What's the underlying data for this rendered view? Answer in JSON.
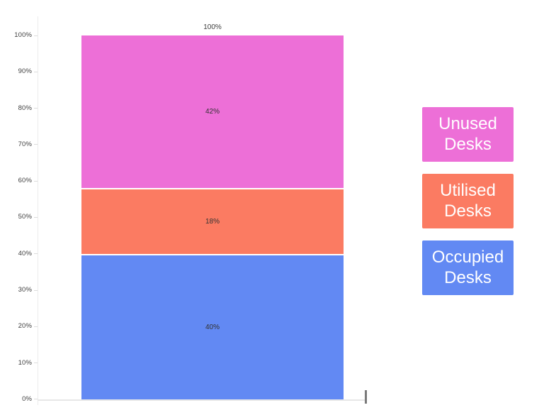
{
  "chart_data": {
    "type": "bar",
    "variant": "100%-stacked-column",
    "title": "",
    "categories": [
      ""
    ],
    "series": [
      {
        "name": "Unused Desks",
        "values": [
          42
        ],
        "color": "#ed6fd7"
      },
      {
        "name": "Utilised Desks",
        "values": [
          18
        ],
        "color": "#fb7b62"
      },
      {
        "name": "Occupied Desks",
        "values": [
          40
        ],
        "color": "#6289f3"
      }
    ],
    "stack_order_top_to_bottom": [
      "Unused Desks",
      "Utilised Desks",
      "Occupied Desks"
    ],
    "data_labels": [
      "42%",
      "18%",
      "40%"
    ],
    "total_label": "100%",
    "xlabel": "",
    "ylabel": "",
    "ylim": [
      0,
      100
    ],
    "y_ticks": [
      "100%",
      "90%",
      "80%",
      "70%",
      "60%",
      "50%",
      "40%",
      "30%",
      "20%",
      "10%",
      "0%"
    ],
    "grid": false,
    "legend_position": "right"
  },
  "colors": {
    "unused_desks": "#ed6fd7",
    "utilised_desks": "#fb7b62",
    "occupied_desks": "#6289f3",
    "axis_line": "#ebebeb",
    "axis_text": "#404040",
    "segment_label_text": "#333333",
    "legend_text": "#ffffff"
  }
}
